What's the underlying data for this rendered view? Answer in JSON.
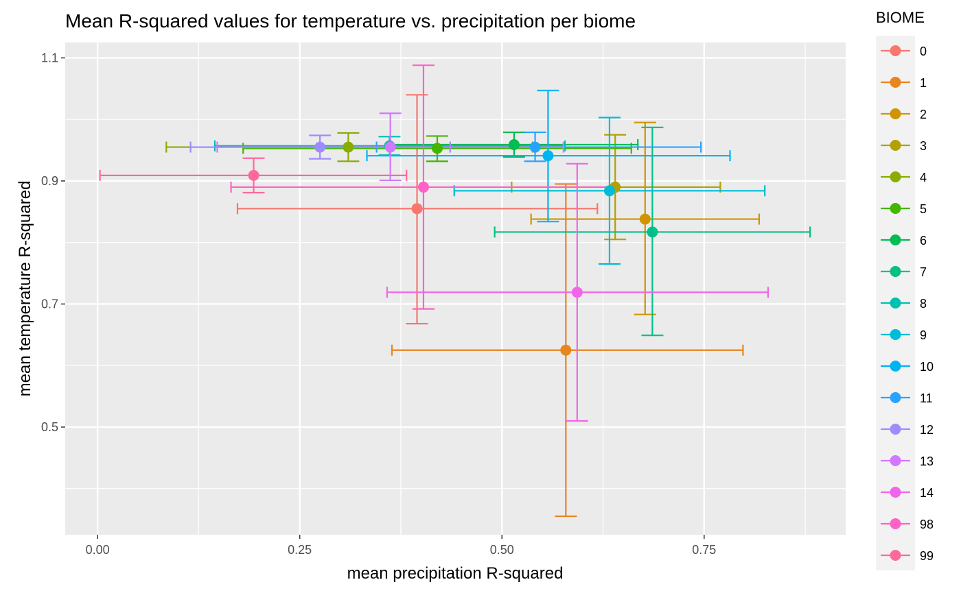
{
  "chart_data": {
    "type": "scatter",
    "title": "Mean R-squared values for temperature vs. precipitation per biome",
    "xlabel": "mean precipitation R-squared",
    "ylabel": "mean temperature R-squared",
    "xlim": [
      -0.04,
      0.925
    ],
    "ylim": [
      0.325,
      1.125
    ],
    "x_ticks": [
      0.0,
      0.25,
      0.5,
      0.75
    ],
    "x_tick_labels": [
      "0.00",
      "0.25",
      "0.50",
      "0.75"
    ],
    "y_ticks": [
      0.5,
      0.7,
      0.9,
      1.1
    ],
    "y_tick_labels": [
      "0.5",
      "0.7",
      "0.9",
      "1.1"
    ],
    "grid": true,
    "legend": {
      "title": "BIOME",
      "position": "right"
    },
    "series": [
      {
        "name": "0",
        "color": "#F8766D",
        "x": 0.395,
        "y": 0.855,
        "xmin": 0.173,
        "xmax": 0.618,
        "ymin": 0.668,
        "ymax": 1.04
      },
      {
        "name": "1",
        "color": "#E7851E",
        "x": 0.579,
        "y": 0.625,
        "xmin": 0.364,
        "xmax": 0.798,
        "ymin": 0.355,
        "ymax": 0.895
      },
      {
        "name": "2",
        "color": "#D09400",
        "x": 0.677,
        "y": 0.838,
        "xmin": 0.536,
        "xmax": 0.818,
        "ymin": 0.683,
        "ymax": 0.995
      },
      {
        "name": "3",
        "color": "#B2A100",
        "x": 0.64,
        "y": 0.89,
        "xmin": 0.512,
        "xmax": 0.77,
        "ymin": 0.805,
        "ymax": 0.975
      },
      {
        "name": "4",
        "color": "#89AC00",
        "x": 0.31,
        "y": 0.955,
        "xmin": 0.085,
        "xmax": 0.538,
        "ymin": 0.932,
        "ymax": 0.978
      },
      {
        "name": "5",
        "color": "#45B500",
        "x": 0.42,
        "y": 0.953,
        "xmin": 0.18,
        "xmax": 0.66,
        "ymin": 0.932,
        "ymax": 0.973
      },
      {
        "name": "6",
        "color": "#00BC51",
        "x": 0.515,
        "y": 0.959,
        "xmin": 0.362,
        "xmax": 0.668,
        "ymin": 0.939,
        "ymax": 0.979
      },
      {
        "name": "7",
        "color": "#00C087",
        "x": 0.686,
        "y": 0.817,
        "xmin": 0.491,
        "xmax": 0.881,
        "ymin": 0.649,
        "ymax": 0.987
      },
      {
        "name": "8",
        "color": "#00C0B2",
        "x": 0.361,
        "y": 0.957,
        "xmin": 0.145,
        "xmax": 0.578,
        "ymin": 0.942,
        "ymax": 0.972
      },
      {
        "name": "9",
        "color": "#00BCD6",
        "x": 0.633,
        "y": 0.884,
        "xmin": 0.441,
        "xmax": 0.825,
        "ymin": 0.765,
        "ymax": 1.003
      },
      {
        "name": "10",
        "color": "#00B3F2",
        "x": 0.557,
        "y": 0.941,
        "xmin": 0.333,
        "xmax": 0.782,
        "ymin": 0.834,
        "ymax": 1.047
      },
      {
        "name": "11",
        "color": "#29A3FF",
        "x": 0.541,
        "y": 0.955,
        "xmin": 0.345,
        "xmax": 0.746,
        "ymin": 0.932,
        "ymax": 0.979
      },
      {
        "name": "12",
        "color": "#9C8DFF",
        "x": 0.275,
        "y": 0.955,
        "xmin": 0.115,
        "xmax": 0.436,
        "ymin": 0.936,
        "ymax": 0.974
      },
      {
        "name": "13",
        "color": "#D277FF",
        "x": 0.362,
        "y": 0.955,
        "xmin": 0.148,
        "xmax": 0.576,
        "ymin": 0.901,
        "ymax": 1.01
      },
      {
        "name": "14",
        "color": "#F166E8",
        "x": 0.593,
        "y": 0.719,
        "xmin": 0.358,
        "xmax": 0.829,
        "ymin": 0.51,
        "ymax": 0.928
      },
      {
        "name": "98",
        "color": "#FF61C7",
        "x": 0.403,
        "y": 0.89,
        "xmin": 0.165,
        "xmax": 0.642,
        "ymin": 0.692,
        "ymax": 1.088
      },
      {
        "name": "99",
        "color": "#FF689F",
        "x": 0.193,
        "y": 0.909,
        "xmin": 0.003,
        "xmax": 0.382,
        "ymin": 0.881,
        "ymax": 0.937
      }
    ]
  }
}
